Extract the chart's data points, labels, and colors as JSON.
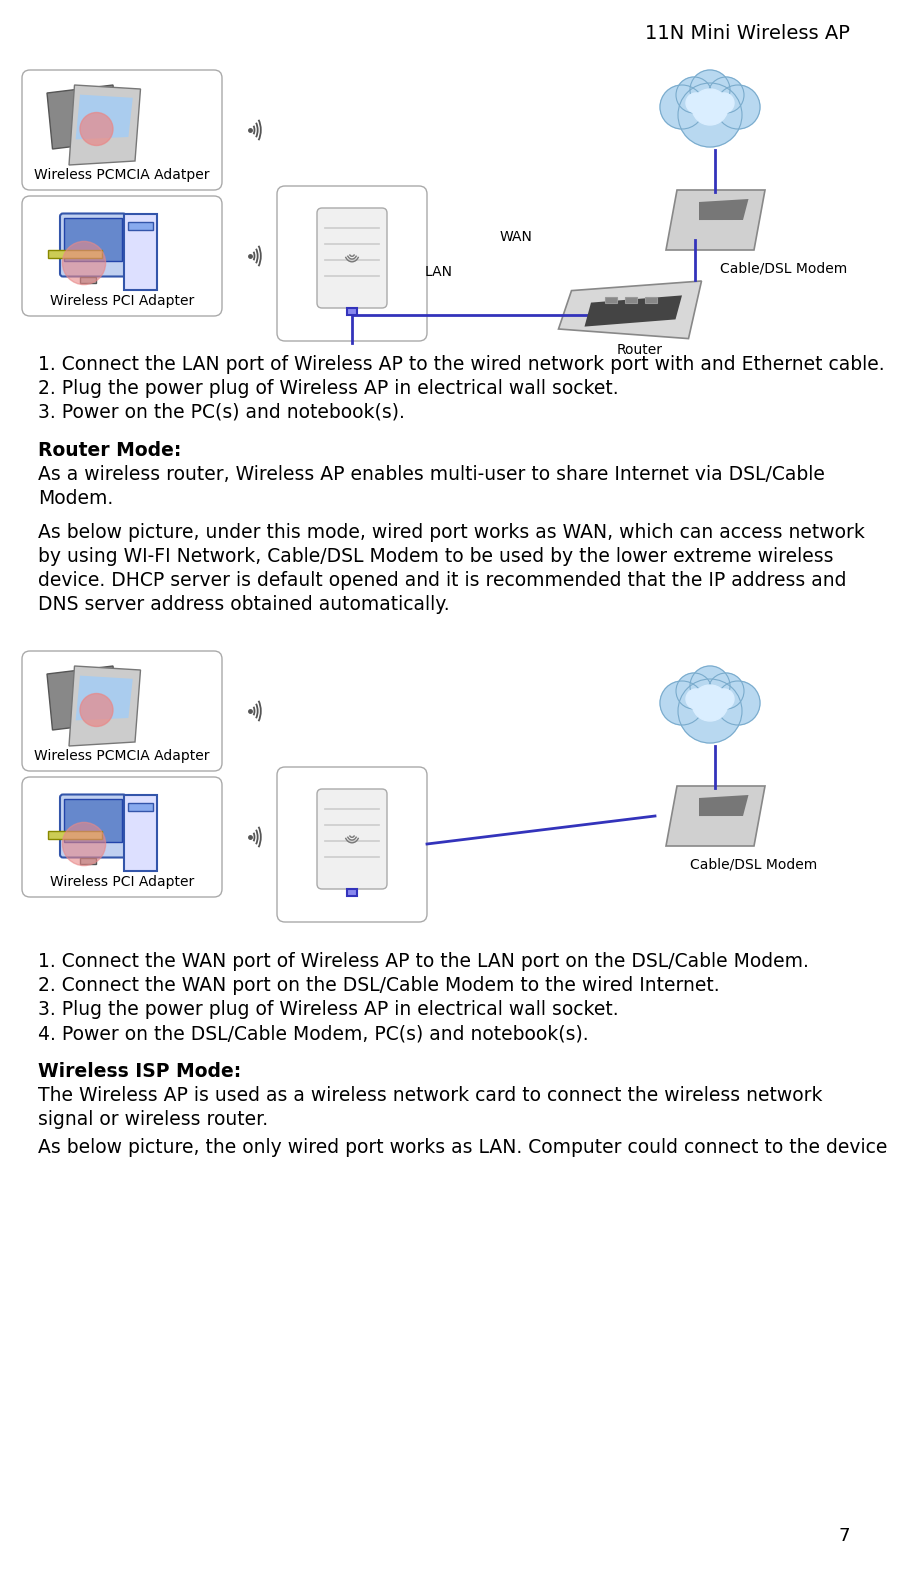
{
  "header": "11N Mini Wireless AP",
  "page_number": "7",
  "bg": "#ffffff",
  "body_fs": 13.5,
  "small_fs": 10,
  "label_fs": 10,
  "title_fs": 14,
  "section1_steps": [
    "1. Connect the LAN port of Wireless AP to the wired network port with and Ethernet cable.",
    "2. Plug the power plug of Wireless AP in electrical wall socket.",
    "3. Power on the PC(s) and notebook(s)."
  ],
  "router_mode_title": "Router Mode:",
  "router_mode_para1": "As a wireless router, Wireless AP enables multi-user to share Internet via DSL/Cable Modem.",
  "router_mode_para2a": "As below picture, under this mode, wired port works as WAN, which can access network",
  "router_mode_para2b": "by using WI-FI Network, Cable/DSL Modem to be used by the lower extreme wireless",
  "router_mode_para2c": "device. DHCP server is default opened and it is recommended that the IP address and",
  "router_mode_para2d": "DNS server address obtained automatically.",
  "section2_steps": [
    "1. Connect the WAN port of Wireless AP to the LAN port on the DSL/Cable Modem.",
    "2. Connect the WAN port on the DSL/Cable Modem to the wired Internet.",
    "3. Plug the power plug of Wireless AP in electrical wall socket.",
    "4. Power on the DSL/Cable Modem, PC(s) and notebook(s)."
  ],
  "wisp_title": "Wireless ISP Mode:",
  "wisp_para1a": "The Wireless AP is used as a wireless network card to connect the wireless network",
  "wisp_para1b": "signal or wireless router.",
  "wisp_para2": "As below picture, the only wired port works as LAN. Computer could connect to the device",
  "lbl_pcmcia1": "Wireless PCMCIA Adatper",
  "lbl_pci1": "Wireless PCI Adapter",
  "lbl_pcmcia2": "Wireless PCMCIA Adapter",
  "lbl_pci2": "Wireless PCI Adapter",
  "lbl_modem1": "Cable/DSL Modem",
  "lbl_modem2": "Cable/DSL Modem",
  "lbl_router": "Router",
  "lbl_lan": "LAN",
  "lbl_wan": "WAN",
  "lbl_internet": "internet",
  "blue_line": "#3333bb",
  "box_edge": "#888888",
  "cloud_fill": "#b8d8f0",
  "cloud_edge": "#7aabcc",
  "cloud_inner": "#daeeff",
  "wave_color": "#555555",
  "modem_fill": "#c8c8c8",
  "modem_dark": "#888888",
  "router_fill": "#cccccc",
  "ap_fill": "#f0f0f0",
  "ap_edge": "#aaaaaa"
}
